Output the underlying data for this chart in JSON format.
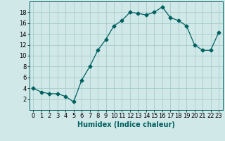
{
  "x": [
    0,
    1,
    2,
    3,
    4,
    5,
    6,
    7,
    8,
    9,
    10,
    11,
    12,
    13,
    14,
    15,
    16,
    17,
    18,
    19,
    20,
    21,
    22,
    23
  ],
  "y": [
    4,
    3.3,
    3,
    3,
    2.5,
    1.5,
    5.5,
    8,
    11,
    13,
    15.5,
    16.5,
    18,
    17.8,
    17.5,
    18,
    19,
    17,
    16.5,
    15.5,
    12,
    11,
    11,
    14.3
  ],
  "line_color": "#006060",
  "marker": "D",
  "marker_size": 2.5,
  "bg_color": "#d0e8e8",
  "grid_color": "#a8cccc",
  "xlabel": "Humidex (Indice chaleur)",
  "xlim": [
    -0.5,
    23.5
  ],
  "ylim": [
    0,
    20
  ],
  "yticks": [
    2,
    4,
    6,
    8,
    10,
    12,
    14,
    16,
    18
  ],
  "xticks": [
    0,
    1,
    2,
    3,
    4,
    5,
    6,
    7,
    8,
    9,
    10,
    11,
    12,
    13,
    14,
    15,
    16,
    17,
    18,
    19,
    20,
    21,
    22,
    23
  ],
  "xlabel_fontsize": 7,
  "tick_fontsize": 6
}
